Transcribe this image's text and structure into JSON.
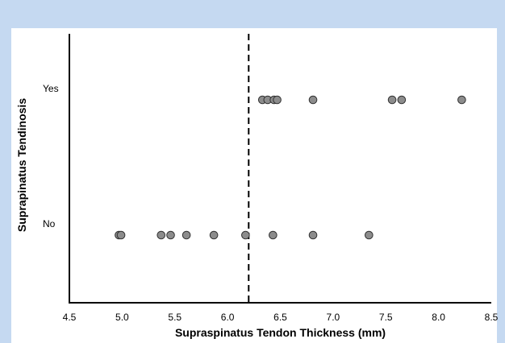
{
  "chart_data": {
    "type": "scatter",
    "xlabel": "Supraspinatus Tendon Thickness (mm)",
    "ylabel": "Suprapinatus Tendinosis",
    "xlim": [
      4.5,
      8.5
    ],
    "xticks": [
      "4.5",
      "5.0",
      "5.5",
      "6.0",
      "6.5",
      "7.0",
      "7.5",
      "8.0",
      "8.5"
    ],
    "categories": [
      "No",
      "Yes"
    ],
    "threshold_x": 6.2,
    "grid": false,
    "marker_color": "#8c8c8c",
    "series": [
      {
        "category": "Yes",
        "x": [
          6.33,
          6.38,
          6.44,
          6.47,
          6.81,
          7.56,
          7.65,
          8.22
        ]
      },
      {
        "category": "No",
        "x": [
          4.97,
          4.99,
          5.37,
          5.46,
          5.61,
          5.87,
          6.17,
          6.43,
          6.81,
          7.34
        ]
      }
    ]
  }
}
